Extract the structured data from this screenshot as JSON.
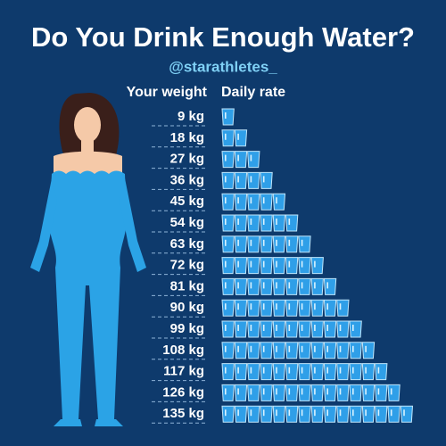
{
  "header": {
    "title": "Do You Drink Enough Water?",
    "handle": "@starathletes_"
  },
  "table": {
    "columns": [
      "Your weight",
      "Daily rate"
    ],
    "rows": [
      {
        "weight": "9 kg",
        "glasses": 1
      },
      {
        "weight": "18 kg",
        "glasses": 2
      },
      {
        "weight": "27 kg",
        "glasses": 3
      },
      {
        "weight": "36 kg",
        "glasses": 4
      },
      {
        "weight": "45 kg",
        "glasses": 5
      },
      {
        "weight": "54 kg",
        "glasses": 6
      },
      {
        "weight": "63 kg",
        "glasses": 7
      },
      {
        "weight": "72 kg",
        "glasses": 8
      },
      {
        "weight": "81 kg",
        "glasses": 9
      },
      {
        "weight": "90 kg",
        "glasses": 10
      },
      {
        "weight": "99 kg",
        "glasses": 11
      },
      {
        "weight": "108 kg",
        "glasses": 12
      },
      {
        "weight": "117 kg",
        "glasses": 13
      },
      {
        "weight": "126 kg",
        "glasses": 14
      },
      {
        "weight": "135 kg",
        "glasses": 15
      }
    ]
  }
}
